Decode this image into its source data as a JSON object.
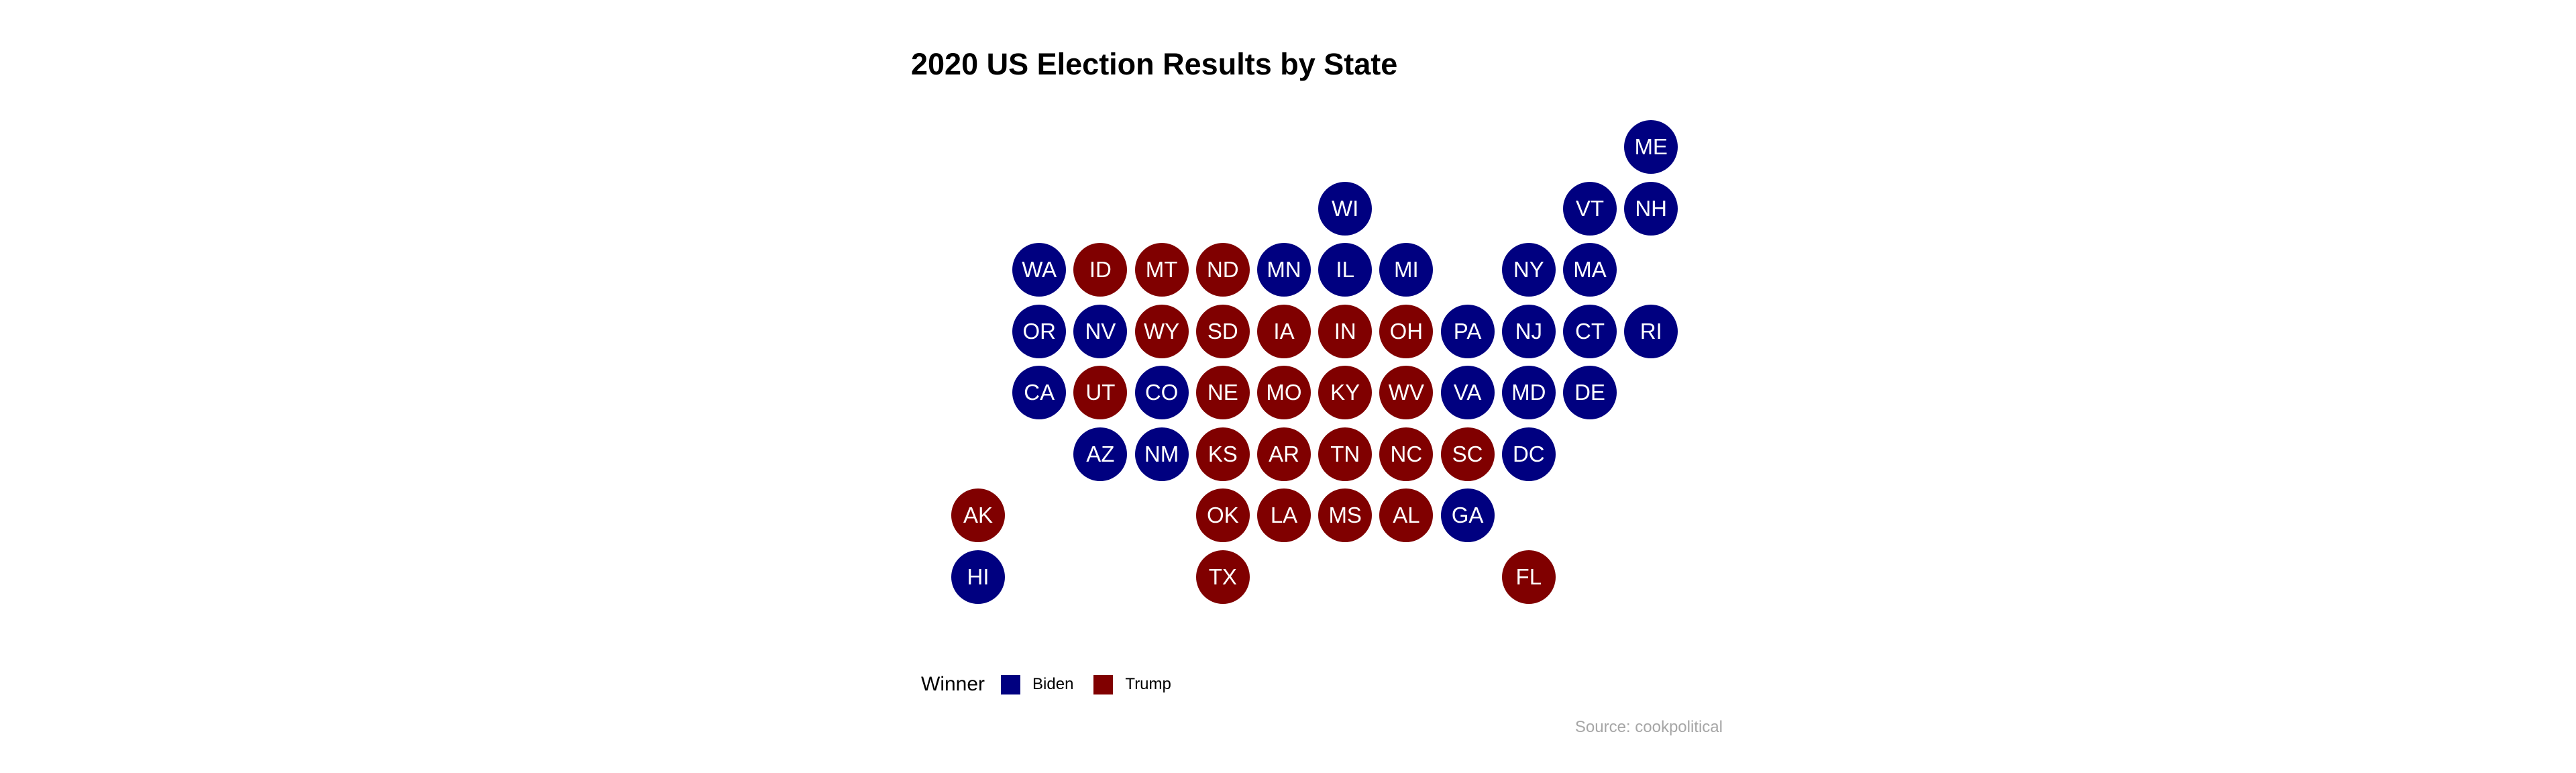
{
  "title": "2020 US Election Results by State",
  "caption": "Source: cookpolitical",
  "legend": {
    "title": "Winner",
    "items": [
      {
        "label": "Biden",
        "color": "#000080"
      },
      {
        "label": "Trump",
        "color": "#800000"
      }
    ]
  },
  "colors": {
    "Biden": "#000080",
    "Trump": "#800000"
  },
  "states": [
    {
      "abbr": "ME",
      "col": 12,
      "row": 1,
      "winner": "Biden"
    },
    {
      "abbr": "WI",
      "col": 7,
      "row": 2,
      "winner": "Biden"
    },
    {
      "abbr": "VT",
      "col": 11,
      "row": 2,
      "winner": "Biden"
    },
    {
      "abbr": "NH",
      "col": 12,
      "row": 2,
      "winner": "Biden"
    },
    {
      "abbr": "WA",
      "col": 2,
      "row": 3,
      "winner": "Biden"
    },
    {
      "abbr": "ID",
      "col": 3,
      "row": 3,
      "winner": "Trump"
    },
    {
      "abbr": "MT",
      "col": 4,
      "row": 3,
      "winner": "Trump"
    },
    {
      "abbr": "ND",
      "col": 5,
      "row": 3,
      "winner": "Trump"
    },
    {
      "abbr": "MN",
      "col": 6,
      "row": 3,
      "winner": "Biden"
    },
    {
      "abbr": "IL",
      "col": 7,
      "row": 3,
      "winner": "Biden"
    },
    {
      "abbr": "MI",
      "col": 8,
      "row": 3,
      "winner": "Biden"
    },
    {
      "abbr": "NY",
      "col": 10,
      "row": 3,
      "winner": "Biden"
    },
    {
      "abbr": "MA",
      "col": 11,
      "row": 3,
      "winner": "Biden"
    },
    {
      "abbr": "OR",
      "col": 2,
      "row": 4,
      "winner": "Biden"
    },
    {
      "abbr": "NV",
      "col": 3,
      "row": 4,
      "winner": "Biden"
    },
    {
      "abbr": "WY",
      "col": 4,
      "row": 4,
      "winner": "Trump"
    },
    {
      "abbr": "SD",
      "col": 5,
      "row": 4,
      "winner": "Trump"
    },
    {
      "abbr": "IA",
      "col": 6,
      "row": 4,
      "winner": "Trump"
    },
    {
      "abbr": "IN",
      "col": 7,
      "row": 4,
      "winner": "Trump"
    },
    {
      "abbr": "OH",
      "col": 8,
      "row": 4,
      "winner": "Trump"
    },
    {
      "abbr": "PA",
      "col": 9,
      "row": 4,
      "winner": "Biden"
    },
    {
      "abbr": "NJ",
      "col": 10,
      "row": 4,
      "winner": "Biden"
    },
    {
      "abbr": "CT",
      "col": 11,
      "row": 4,
      "winner": "Biden"
    },
    {
      "abbr": "RI",
      "col": 12,
      "row": 4,
      "winner": "Biden"
    },
    {
      "abbr": "CA",
      "col": 2,
      "row": 5,
      "winner": "Biden"
    },
    {
      "abbr": "UT",
      "col": 3,
      "row": 5,
      "winner": "Trump"
    },
    {
      "abbr": "CO",
      "col": 4,
      "row": 5,
      "winner": "Biden"
    },
    {
      "abbr": "NE",
      "col": 5,
      "row": 5,
      "winner": "Trump"
    },
    {
      "abbr": "MO",
      "col": 6,
      "row": 5,
      "winner": "Trump"
    },
    {
      "abbr": "KY",
      "col": 7,
      "row": 5,
      "winner": "Trump"
    },
    {
      "abbr": "WV",
      "col": 8,
      "row": 5,
      "winner": "Trump"
    },
    {
      "abbr": "VA",
      "col": 9,
      "row": 5,
      "winner": "Biden"
    },
    {
      "abbr": "MD",
      "col": 10,
      "row": 5,
      "winner": "Biden"
    },
    {
      "abbr": "DE",
      "col": 11,
      "row": 5,
      "winner": "Biden"
    },
    {
      "abbr": "AZ",
      "col": 3,
      "row": 6,
      "winner": "Biden"
    },
    {
      "abbr": "NM",
      "col": 4,
      "row": 6,
      "winner": "Biden"
    },
    {
      "abbr": "KS",
      "col": 5,
      "row": 6,
      "winner": "Trump"
    },
    {
      "abbr": "AR",
      "col": 6,
      "row": 6,
      "winner": "Trump"
    },
    {
      "abbr": "TN",
      "col": 7,
      "row": 6,
      "winner": "Trump"
    },
    {
      "abbr": "NC",
      "col": 8,
      "row": 6,
      "winner": "Trump"
    },
    {
      "abbr": "SC",
      "col": 9,
      "row": 6,
      "winner": "Trump"
    },
    {
      "abbr": "DC",
      "col": 10,
      "row": 6,
      "winner": "Biden"
    },
    {
      "abbr": "AK",
      "col": 1,
      "row": 7,
      "winner": "Trump"
    },
    {
      "abbr": "OK",
      "col": 5,
      "row": 7,
      "winner": "Trump"
    },
    {
      "abbr": "LA",
      "col": 6,
      "row": 7,
      "winner": "Trump"
    },
    {
      "abbr": "MS",
      "col": 7,
      "row": 7,
      "winner": "Trump"
    },
    {
      "abbr": "AL",
      "col": 8,
      "row": 7,
      "winner": "Trump"
    },
    {
      "abbr": "GA",
      "col": 9,
      "row": 7,
      "winner": "Biden"
    },
    {
      "abbr": "HI",
      "col": 1,
      "row": 8,
      "winner": "Biden"
    },
    {
      "abbr": "TX",
      "col": 5,
      "row": 8,
      "winner": "Trump"
    },
    {
      "abbr": "FL",
      "col": 10,
      "row": 8,
      "winner": "Trump"
    }
  ]
}
